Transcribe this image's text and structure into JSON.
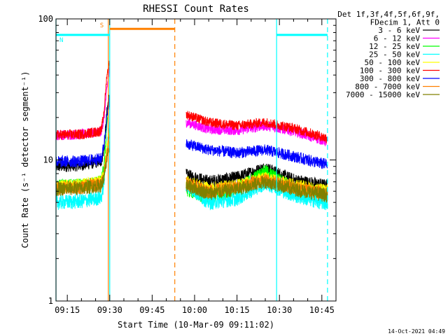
{
  "chart_data": {
    "type": "line",
    "title": "RHESSI Count Rates",
    "xlabel": "Start Time (10-Mar-09 09:11:02)",
    "ylabel": "Count Rate (s⁻¹ detector segment⁻¹)",
    "y_scale": "log",
    "ylim": [
      1,
      100
    ],
    "xlim": [
      "09:11",
      "10:50"
    ],
    "y_ticks": [
      {
        "value": 1,
        "label": "1"
      },
      {
        "value": 10,
        "label": "10"
      },
      {
        "value": 100,
        "label": "100"
      }
    ],
    "x_ticks": [
      {
        "value": "09:15",
        "label": "09:15"
      },
      {
        "value": "09:30",
        "label": "09:30"
      },
      {
        "value": "09:45",
        "label": "09:45"
      },
      {
        "value": "10:00",
        "label": "10:00"
      },
      {
        "value": "10:15",
        "label": "10:15"
      },
      {
        "value": "10:30",
        "label": "10:30"
      },
      {
        "value": "10:45",
        "label": "10:45"
      }
    ],
    "legend": {
      "placement": "right",
      "header": [
        "Det 1f,3f,4f,5f,6f,9f,",
        "FDecim 1, Att 0"
      ]
    },
    "data_gaps": [
      [
        "09:30",
        "09:57"
      ]
    ],
    "series": [
      {
        "name": "3 - 6 keV",
        "color": "#000000",
        "x": [
          "09:11",
          "09:20",
          "09:27",
          "09:28",
          "09:29",
          "09:30",
          "09:57",
          "10:05",
          "10:15",
          "10:25",
          "10:35",
          "10:47"
        ],
        "y": [
          9.0,
          9.2,
          9.8,
          12,
          22,
          30,
          7.8,
          7.0,
          7.5,
          8.8,
          7.2,
          6.5
        ]
      },
      {
        "name": "6 - 12 keV",
        "color": "#ff00ff",
        "x": [
          "09:11",
          "09:20",
          "09:27",
          "09:28",
          "09:29",
          "09:30",
          "09:57",
          "10:05",
          "10:15",
          "10:25",
          "10:35",
          "10:47"
        ],
        "y": [
          15,
          15.2,
          16,
          20,
          32,
          45,
          18.5,
          16.5,
          16.2,
          17.5,
          16,
          13.5
        ]
      },
      {
        "name": "12 - 25 keV",
        "color": "#00ff00",
        "x": [
          "09:11",
          "09:20",
          "09:27",
          "09:28",
          "09:29",
          "09:30",
          "09:57",
          "10:05",
          "10:15",
          "10:25",
          "10:35",
          "10:47"
        ],
        "y": [
          6.5,
          6.6,
          7.0,
          9,
          18,
          28,
          6.2,
          5.4,
          6.2,
          8.4,
          6.3,
          5.7
        ]
      },
      {
        "name": "25 - 50 keV",
        "color": "#00ffff",
        "x": [
          "09:11",
          "09:20",
          "09:27",
          "09:28",
          "09:29",
          "09:30",
          "09:57",
          "10:05",
          "10:15",
          "10:25",
          "10:35",
          "10:47"
        ],
        "y": [
          5.0,
          5.1,
          5.4,
          7,
          12,
          18,
          6.6,
          5.0,
          5.3,
          6.8,
          5.6,
          4.9
        ]
      },
      {
        "name": "50 - 100 keV",
        "color": "#ffff00",
        "x": [
          "09:11",
          "09:20",
          "09:27",
          "09:28",
          "09:29",
          "09:30",
          "09:57",
          "10:05",
          "10:15",
          "10:25",
          "10:35",
          "10:47"
        ],
        "y": [
          6.5,
          6.6,
          7.0,
          8,
          12,
          16,
          7.0,
          6.2,
          6.6,
          7.4,
          6.6,
          6.0
        ]
      },
      {
        "name": "100 - 300 keV",
        "color": "#ff0000",
        "x": [
          "09:11",
          "09:20",
          "09:27",
          "09:28",
          "09:29",
          "09:30",
          "09:57",
          "10:05",
          "10:15",
          "10:25",
          "10:35",
          "10:47"
        ],
        "y": [
          15,
          15.2,
          16,
          22,
          40,
          50,
          21,
          18.5,
          17.5,
          18.5,
          16.8,
          14.2
        ]
      },
      {
        "name": "300 - 800 keV",
        "color": "#0000ff",
        "x": [
          "09:11",
          "09:20",
          "09:27",
          "09:28",
          "09:29",
          "09:30",
          "09:57",
          "10:05",
          "10:15",
          "10:25",
          "10:35",
          "10:47"
        ],
        "y": [
          9.7,
          9.8,
          10.2,
          13,
          20,
          28,
          13,
          11.8,
          11.2,
          11.8,
          10.6,
          9.2
        ]
      },
      {
        "name": "800 - 7000 keV",
        "color": "#ff8000",
        "x": [
          "09:11",
          "09:20",
          "09:27",
          "09:28",
          "09:29",
          "09:30",
          "09:57",
          "10:05",
          "10:15",
          "10:25",
          "10:35",
          "10:47"
        ],
        "y": [
          6.3,
          6.4,
          6.8,
          8,
          11,
          15,
          6.8,
          6.0,
          6.4,
          7.2,
          6.4,
          5.8
        ]
      },
      {
        "name": "7000 - 15000 keV",
        "color": "#808000",
        "x": [
          "09:11",
          "09:20",
          "09:27",
          "09:28",
          "09:29",
          "09:30",
          "09:57",
          "10:05",
          "10:15",
          "10:25",
          "10:35",
          "10:47"
        ],
        "y": [
          6.2,
          6.3,
          6.6,
          7.5,
          10,
          13,
          6.6,
          5.8,
          6.2,
          7.0,
          6.2,
          5.6
        ]
      }
    ],
    "attenuator_states": [
      {
        "label": "S",
        "x_start": "09:30",
        "x_end": "09:53",
        "y": 85,
        "color": "#ff8000"
      }
    ],
    "decimation_states": [
      {
        "label": "N",
        "x_start": "09:11",
        "x_end": "09:30",
        "y": 77,
        "color": "#00ffff"
      },
      {
        "label": "",
        "x_start": "10:29",
        "x_end": "10:47",
        "y": 77,
        "color": "#00ffff"
      }
    ],
    "markers": [
      {
        "x": "09:11",
        "style": "solid",
        "color": "#00ffff"
      },
      {
        "x": "09:29.5",
        "style": "solid",
        "color": "#ff8000"
      },
      {
        "x": "09:30",
        "style": "solid",
        "color": "#00ffff"
      },
      {
        "x": "09:53",
        "style": "dashed",
        "color": "#ff8000"
      },
      {
        "x": "10:29",
        "style": "solid",
        "color": "#00ffff"
      },
      {
        "x": "10:47",
        "style": "dashed",
        "color": "#00ffff"
      }
    ],
    "timestamp": "14-Oct-2021 04:49"
  }
}
